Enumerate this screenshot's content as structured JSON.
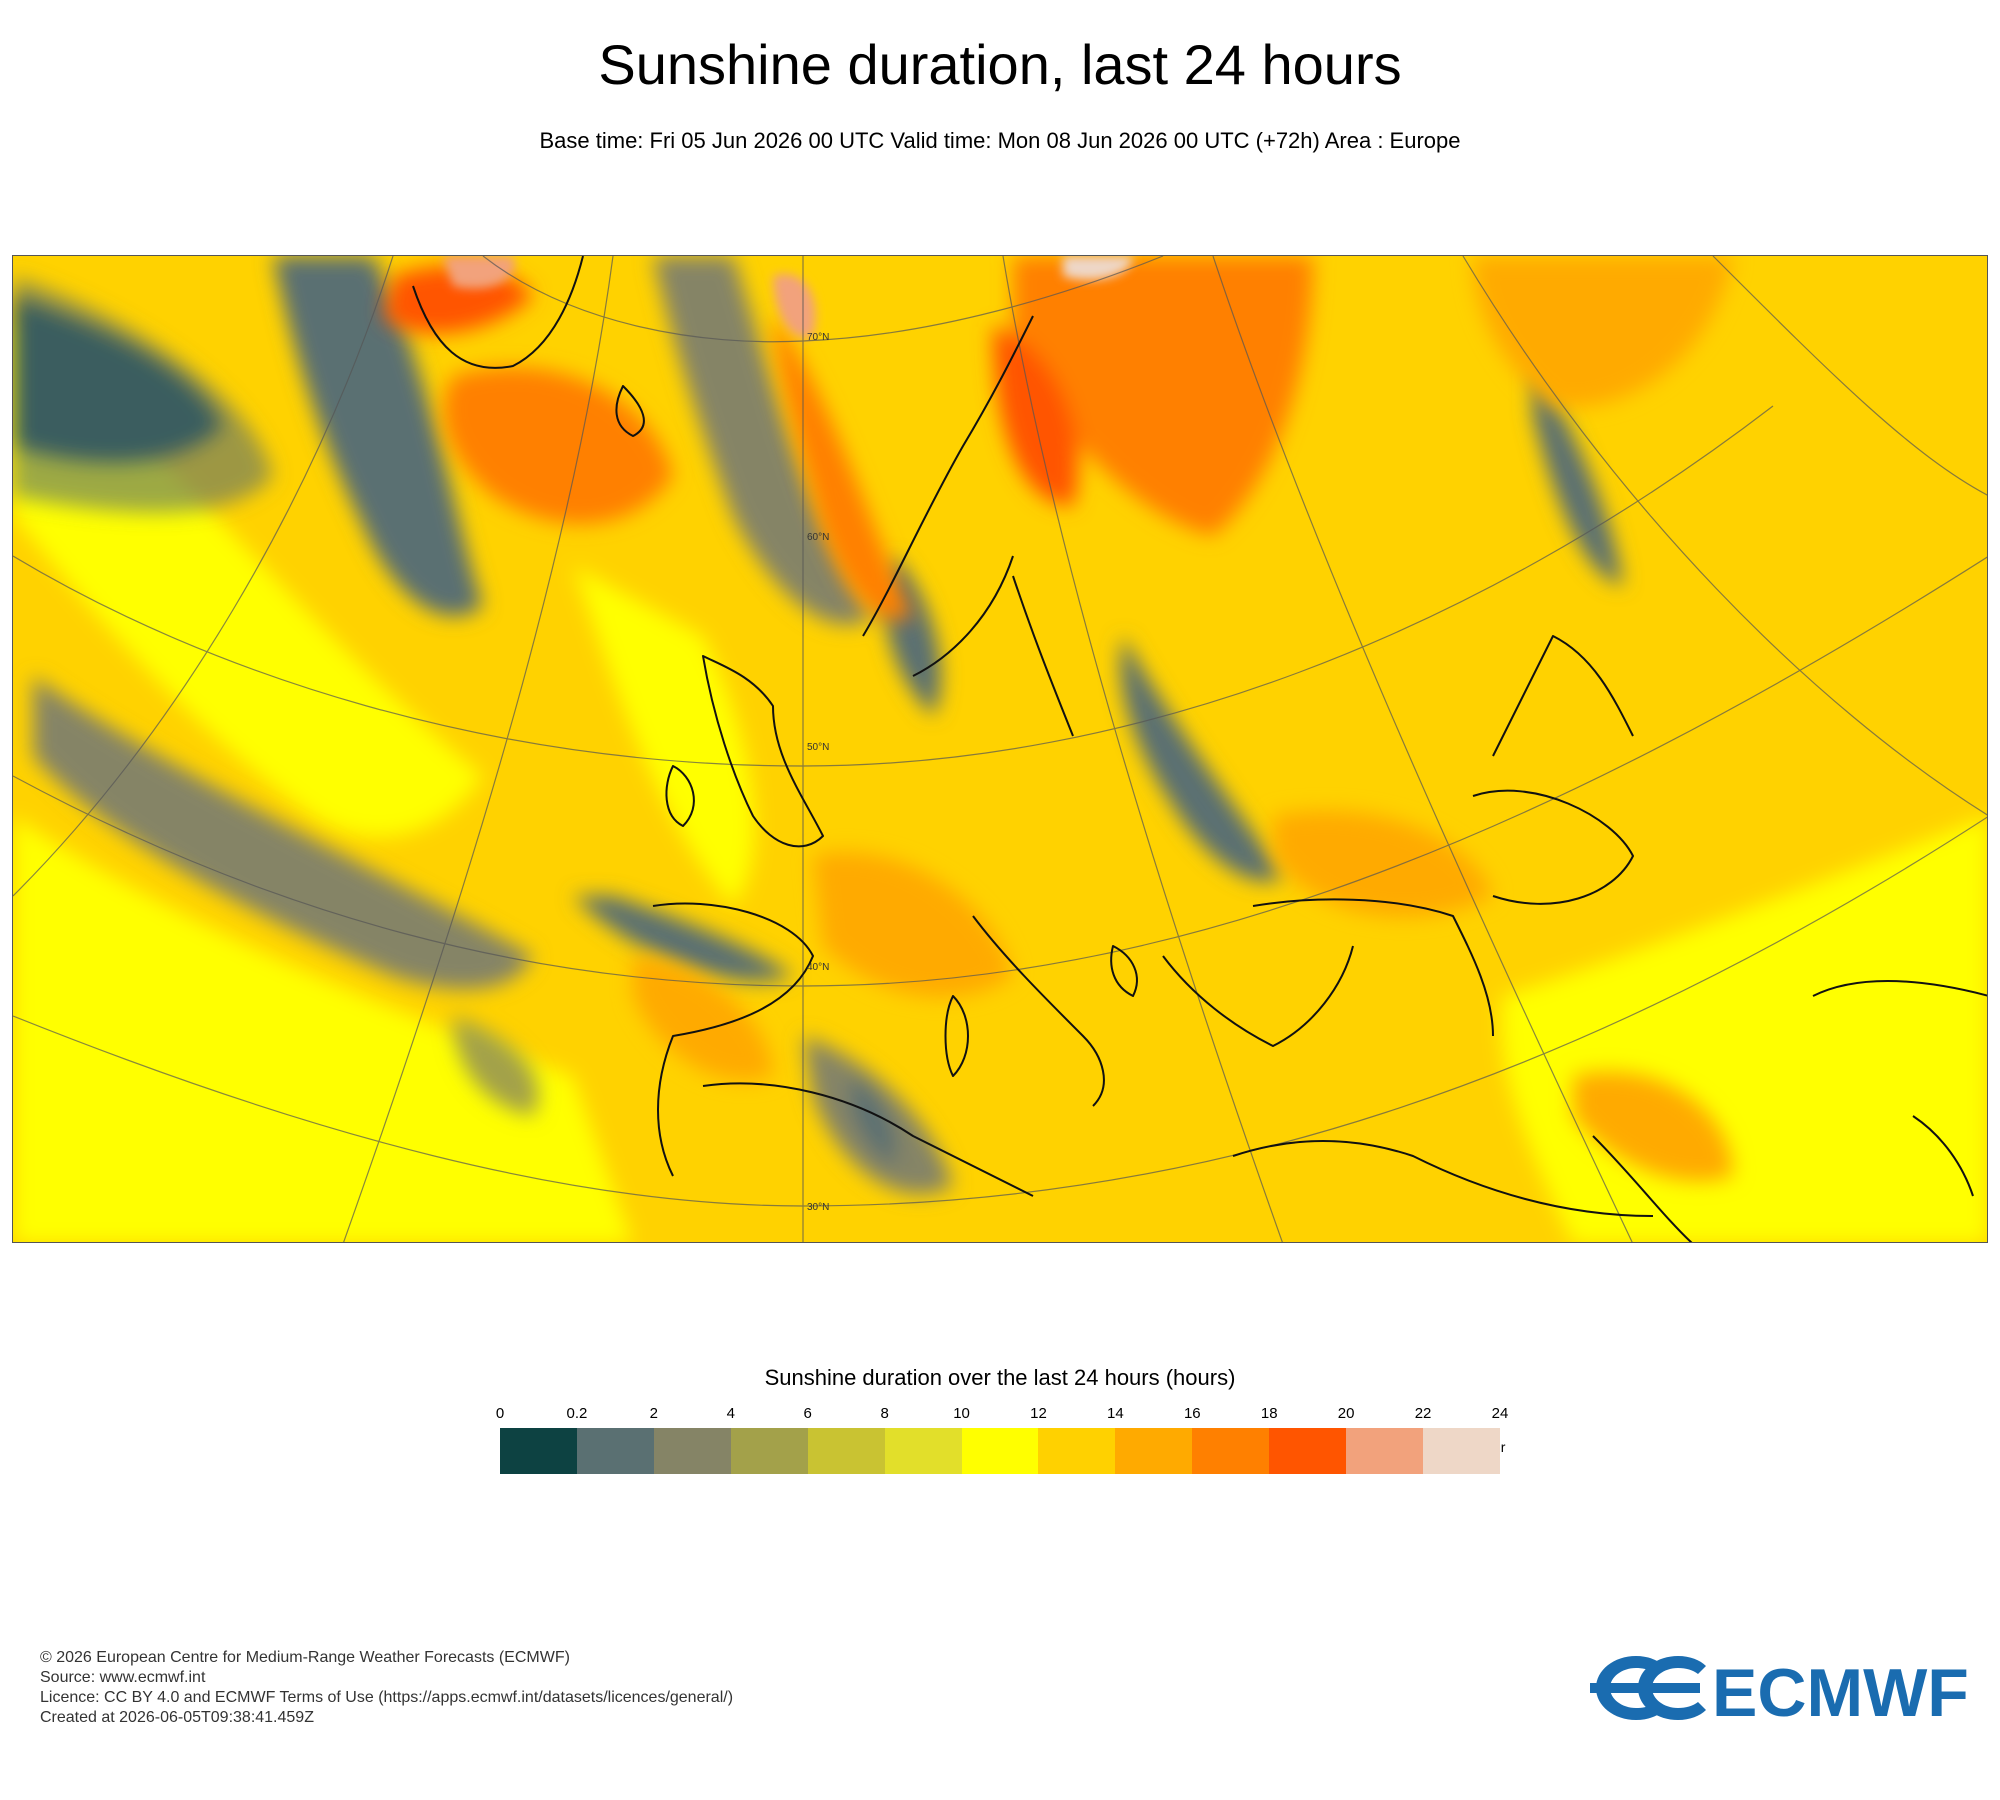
{
  "title": "Sunshine duration, last 24 hours",
  "subtitle": "Base time: Fri 05 Jun 2026 00 UTC Valid time: Mon 08 Jun 2026 00 UTC (+72h) Area : Europe",
  "map": {
    "area": "Europe",
    "background_color": "#ffd200",
    "latitude_labels": [
      "70°N",
      "60°N",
      "50°N",
      "40°N",
      "30°N"
    ]
  },
  "legend": {
    "title": "Sunshine duration over the last 24 hours (hours)",
    "unit": "-hr",
    "ticks": [
      "0",
      "0.2",
      "2",
      "4",
      "6",
      "8",
      "10",
      "12",
      "14",
      "16",
      "18",
      "20",
      "22",
      "24"
    ],
    "colors": [
      "#0d4242",
      "#5a7072",
      "#858466",
      "#a3a14a",
      "#c9c332",
      "#e2df2a",
      "#ffff00",
      "#ffd100",
      "#ffaa00",
      "#ff8000",
      "#ff5500",
      "#f2a27c",
      "#eed7c7"
    ]
  },
  "footer": {
    "line1": "© 2026 European Centre for Medium-Range Weather Forecasts (ECMWF)",
    "line2": "Source: www.ecmwf.int",
    "line3": "Licence: CC BY 4.0 and ECMWF Terms of Use (https://apps.ecmwf.int/datasets/licences/general/)",
    "line4": "Created at 2026-06-05T09:38:41.459Z"
  },
  "logo": {
    "text": "ECMWF",
    "color": "#1a6cb0"
  }
}
